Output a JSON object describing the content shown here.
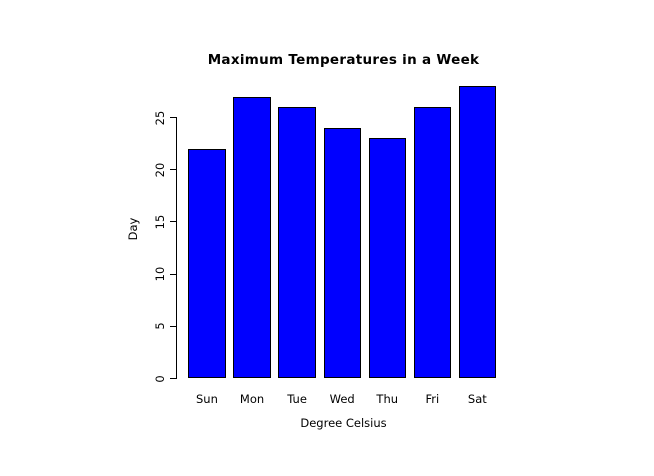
{
  "chart_data": {
    "type": "bar",
    "title": "Maximum Temperatures in a Week",
    "categories": [
      "Sun",
      "Mon",
      "Tue",
      "Wed",
      "Thu",
      "Fri",
      "Sat"
    ],
    "values": [
      22,
      27,
      26,
      24,
      23,
      26,
      28
    ],
    "xlabel": "Degree Celsius",
    "ylabel": "Day",
    "yticks": [
      0,
      5,
      10,
      15,
      20,
      25
    ],
    "ylim": [
      0,
      28
    ],
    "grid": false,
    "legend": null,
    "bar_fill_color": "#0000ff",
    "bar_border_color": "#000000",
    "background_color": "#ffffff",
    "text_color": "#000000"
  }
}
